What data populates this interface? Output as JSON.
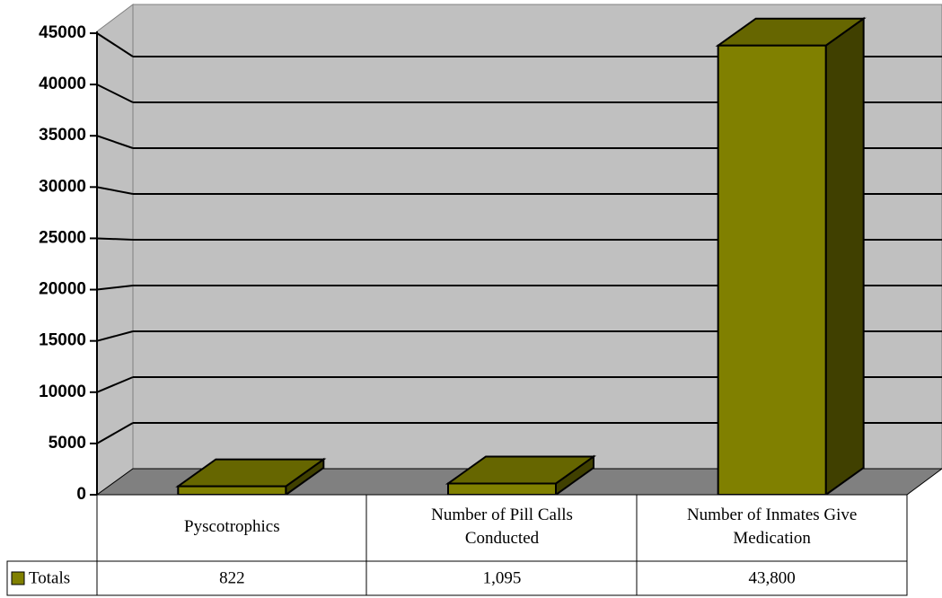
{
  "chart_data": {
    "type": "bar3d",
    "categories": [
      "Pyscotrophics",
      "Number of Pill Calls Conducted",
      "Number of Inmates Give Medication"
    ],
    "series": [
      {
        "name": "Totals",
        "color": "#808000",
        "values": [
          822,
          1095,
          43800
        ],
        "value_labels": [
          "822",
          "1,095",
          "43,800"
        ]
      }
    ],
    "ylim": [
      0,
      45000
    ],
    "yticks": [
      0,
      5000,
      10000,
      15000,
      20000,
      25000,
      30000,
      35000,
      40000,
      45000
    ],
    "grid": true,
    "legend": "data-table"
  }
}
